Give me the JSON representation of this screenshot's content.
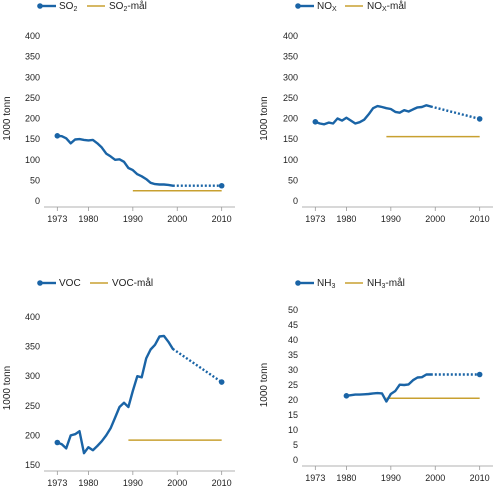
{
  "colors": {
    "series": "#1a64a6",
    "target": "#c8a030",
    "axis": "#999999"
  },
  "chart_data": [
    {
      "type": "line",
      "ylabel": "1000 tonn",
      "ylim": [
        0,
        400
      ],
      "yticks": [
        0,
        50,
        100,
        150,
        200,
        250,
        300,
        350,
        400
      ],
      "xlim": [
        1970,
        2013
      ],
      "xticks": [
        1973,
        1980,
        1990,
        2000,
        2010
      ],
      "legend": {
        "series": "SO",
        "series_sub": "2",
        "target": "SO",
        "target_sub": "2",
        "target_suffix": "-mål"
      },
      "series": {
        "x": [
          1973,
          1974,
          1975,
          1976,
          1977,
          1978,
          1979,
          1980,
          1981,
          1982,
          1983,
          1984,
          1985,
          1986,
          1987,
          1988,
          1989,
          1990,
          1991,
          1992,
          1993,
          1994,
          1995,
          1996,
          1997,
          1998,
          1999
        ],
        "y": [
          158,
          157,
          152,
          140,
          149,
          150,
          148,
          147,
          148,
          140,
          130,
          115,
          108,
          100,
          101,
          95,
          80,
          75,
          65,
          60,
          53,
          44,
          41,
          40,
          40,
          39,
          37
        ],
        "start_marker": [
          1973,
          158
        ]
      },
      "projection": {
        "x": [
          1999,
          2010
        ],
        "y": [
          37,
          37
        ],
        "end_marker": [
          2010,
          37
        ]
      },
      "target": {
        "x": [
          1990,
          2010
        ],
        "y": 25
      }
    },
    {
      "type": "line",
      "ylabel": "1000 tonn",
      "ylim": [
        0,
        400
      ],
      "yticks": [
        0,
        50,
        100,
        150,
        200,
        250,
        300,
        350,
        400
      ],
      "xlim": [
        1970,
        2013
      ],
      "xticks": [
        1973,
        1980,
        1990,
        2000,
        2010
      ],
      "legend": {
        "series": "NO",
        "series_sub": "X",
        "target": "NO",
        "target_sub": "X",
        "target_suffix": "-mål"
      },
      "series": {
        "x": [
          1973,
          1974,
          1975,
          1976,
          1977,
          1978,
          1979,
          1980,
          1981,
          1982,
          1983,
          1984,
          1985,
          1986,
          1987,
          1988,
          1989,
          1990,
          1991,
          1992,
          1993,
          1994,
          1995,
          1996,
          1997,
          1998,
          1999
        ],
        "y": [
          192,
          188,
          186,
          190,
          188,
          200,
          195,
          202,
          195,
          188,
          191,
          197,
          210,
          225,
          230,
          228,
          225,
          223,
          216,
          214,
          220,
          217,
          222,
          227,
          228,
          232,
          229
        ],
        "start_marker": [
          1973,
          192
        ]
      },
      "projection": {
        "x": [
          1999,
          2010
        ],
        "y": [
          229,
          199
        ],
        "end_marker": [
          2010,
          199
        ]
      },
      "target": {
        "x": [
          1989,
          2010
        ],
        "y": 156
      }
    },
    {
      "type": "line",
      "ylabel": "1000 tonn",
      "ylim": [
        150,
        410
      ],
      "yticks": [
        150,
        200,
        250,
        300,
        350,
        400
      ],
      "xlim": [
        1970,
        2013
      ],
      "xticks": [
        1973,
        1980,
        1990,
        2000,
        2010
      ],
      "legend": {
        "series": "VOC",
        "series_sub": "",
        "target": "VOC",
        "target_sub": "",
        "target_suffix": "-mål"
      },
      "series": {
        "x": [
          1973,
          1974,
          1975,
          1976,
          1977,
          1978,
          1979,
          1980,
          1981,
          1982,
          1983,
          1984,
          1985,
          1986,
          1987,
          1988,
          1989,
          1990,
          1991,
          1992,
          1993,
          1994,
          1995,
          1996,
          1997,
          1998,
          1999
        ],
        "y": [
          188,
          185,
          178,
          200,
          202,
          207,
          170,
          180,
          175,
          182,
          190,
          200,
          212,
          230,
          248,
          255,
          248,
          275,
          300,
          298,
          330,
          345,
          353,
          367,
          368,
          358,
          346
        ],
        "start_marker": [
          1973,
          188
        ]
      },
      "projection": {
        "x": [
          1999,
          2010
        ],
        "y": [
          346,
          290
        ],
        "end_marker": [
          2010,
          290
        ]
      },
      "target": {
        "x": [
          1989,
          2010
        ],
        "y": 192
      }
    },
    {
      "type": "line",
      "ylabel": "1000 tonn",
      "ylim": [
        0,
        50
      ],
      "yticks": [
        0,
        5,
        10,
        15,
        20,
        25,
        30,
        35,
        40,
        45,
        50
      ],
      "xlim": [
        1970,
        2013
      ],
      "xticks": [
        1973,
        1980,
        1990,
        2000,
        2010
      ],
      "legend": {
        "series": "NH",
        "series_sub": "3",
        "target": "NH",
        "target_sub": "3",
        "target_suffix": "-mål"
      },
      "series": {
        "x": [
          1980,
          1981,
          1982,
          1983,
          1984,
          1985,
          1986,
          1987,
          1988,
          1989,
          1990,
          1991,
          1992,
          1993,
          1994,
          1995,
          1996,
          1997,
          1998,
          1999
        ],
        "y": [
          21.4,
          21.6,
          21.8,
          21.8,
          21.9,
          22.0,
          22.2,
          22.3,
          22.2,
          19.5,
          22.0,
          23.0,
          25.1,
          25.0,
          25.2,
          26.6,
          27.5,
          27.6,
          28.5,
          28.5
        ],
        "start_marker": [
          1980,
          21.4
        ]
      },
      "projection": {
        "x": [
          1999,
          2010
        ],
        "y": [
          28.5,
          28.5
        ],
        "end_marker": [
          2010,
          28.5
        ]
      },
      "target": {
        "x": [
          1989,
          2010
        ],
        "y": 20.6
      }
    }
  ]
}
